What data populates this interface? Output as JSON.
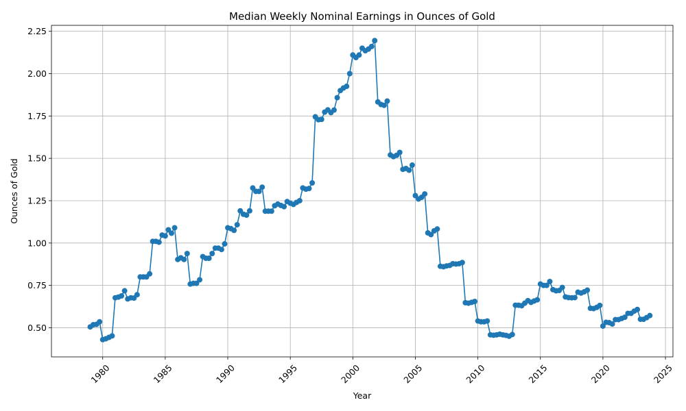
{
  "chart_data": {
    "type": "line",
    "title": "Median Weekly Nominal Earnings in Ounces of Gold",
    "xlabel": "Year",
    "ylabel": "Ounces of Gold",
    "xlim": [
      1975.9,
      2025.6
    ],
    "ylim": [
      0.328,
      2.285
    ],
    "x_ticks": [
      1980,
      1985,
      1990,
      1995,
      2000,
      2005,
      2010,
      2015,
      2020,
      2025
    ],
    "y_ticks": [
      0.5,
      0.75,
      1.0,
      1.25,
      1.5,
      1.75,
      2.0,
      2.25
    ],
    "y_tick_labels": [
      "0.50",
      "0.75",
      "1.00",
      "1.25",
      "1.50",
      "1.75",
      "2.00",
      "2.25"
    ],
    "grid": true,
    "marker": "circle",
    "series": [
      {
        "color": "#1f77b4",
        "x": [
          1979.0,
          1979.25,
          1979.5,
          1979.75,
          1980.0,
          1980.25,
          1980.5,
          1980.75,
          1981.0,
          1981.25,
          1981.5,
          1981.75,
          1982.0,
          1982.25,
          1982.5,
          1982.75,
          1983.0,
          1983.25,
          1983.5,
          1983.75,
          1984.0,
          1984.25,
          1984.5,
          1984.75,
          1985.0,
          1985.25,
          1985.5,
          1985.75,
          1986.0,
          1986.25,
          1986.5,
          1986.75,
          1987.0,
          1987.25,
          1987.5,
          1987.75,
          1988.0,
          1988.25,
          1988.5,
          1988.75,
          1989.0,
          1989.25,
          1989.5,
          1989.75,
          1990.0,
          1990.25,
          1990.5,
          1990.75,
          1991.0,
          1991.25,
          1991.5,
          1991.75,
          1992.0,
          1992.25,
          1992.5,
          1992.75,
          1993.0,
          1993.25,
          1993.5,
          1993.75,
          1994.0,
          1994.25,
          1994.5,
          1994.75,
          1995.0,
          1995.25,
          1995.5,
          1995.75,
          1996.0,
          1996.25,
          1996.5,
          1996.75,
          1997.0,
          1997.25,
          1997.5,
          1997.75,
          1998.0,
          1998.25,
          1998.5,
          1998.75,
          1999.0,
          1999.25,
          1999.5,
          1999.75,
          2000.0,
          2000.25,
          2000.5,
          2000.75,
          2001.0,
          2001.25,
          2001.5,
          2001.75,
          2002.0,
          2002.25,
          2002.5,
          2002.75,
          2003.0,
          2003.25,
          2003.5,
          2003.75,
          2004.0,
          2004.25,
          2004.5,
          2004.75,
          2005.0,
          2005.25,
          2005.5,
          2005.75,
          2006.0,
          2006.25,
          2006.5,
          2006.75,
          2007.0,
          2007.25,
          2007.5,
          2007.75,
          2008.0,
          2008.25,
          2008.5,
          2008.75,
          2009.0,
          2009.25,
          2009.5,
          2009.75,
          2010.0,
          2010.25,
          2010.5,
          2010.75,
          2011.0,
          2011.25,
          2011.5,
          2011.75,
          2012.0,
          2012.25,
          2012.5,
          2012.75,
          2013.0,
          2013.25,
          2013.5,
          2013.75,
          2014.0,
          2014.25,
          2014.5,
          2014.75,
          2015.0,
          2015.25,
          2015.5,
          2015.75,
          2016.0,
          2016.25,
          2016.5,
          2016.75,
          2017.0,
          2017.25,
          2017.5,
          2017.75,
          2018.0,
          2018.25,
          2018.5,
          2018.75,
          2019.0,
          2019.25,
          2019.5,
          2019.75,
          2020.0,
          2020.25,
          2020.5,
          2020.75,
          2021.0,
          2021.25,
          2021.5,
          2021.75,
          2022.0,
          2022.25,
          2022.5,
          2022.75,
          2023.0,
          2023.25,
          2023.5,
          2023.75
        ],
        "y": [
          0.505,
          0.518,
          0.52,
          0.535,
          0.43,
          0.435,
          0.443,
          0.452,
          0.677,
          0.681,
          0.688,
          0.718,
          0.67,
          0.677,
          0.675,
          0.695,
          0.8,
          0.8,
          0.8,
          0.818,
          1.01,
          1.01,
          1.005,
          1.047,
          1.042,
          1.078,
          1.058,
          1.09,
          0.903,
          0.913,
          0.903,
          0.938,
          0.758,
          0.762,
          0.762,
          0.783,
          0.92,
          0.91,
          0.91,
          0.938,
          0.97,
          0.97,
          0.962,
          0.995,
          1.09,
          1.085,
          1.075,
          1.108,
          1.19,
          1.17,
          1.165,
          1.19,
          1.325,
          1.305,
          1.305,
          1.33,
          1.188,
          1.188,
          1.188,
          1.22,
          1.23,
          1.222,
          1.215,
          1.245,
          1.235,
          1.228,
          1.24,
          1.25,
          1.325,
          1.318,
          1.322,
          1.355,
          1.745,
          1.728,
          1.73,
          1.773,
          1.786,
          1.77,
          1.785,
          1.858,
          1.9,
          1.915,
          1.925,
          2.0,
          2.11,
          2.095,
          2.11,
          2.15,
          2.135,
          2.145,
          2.16,
          2.195,
          1.833,
          1.818,
          1.813,
          1.838,
          1.52,
          1.51,
          1.518,
          1.535,
          1.435,
          1.44,
          1.43,
          1.46,
          1.28,
          1.26,
          1.27,
          1.29,
          1.06,
          1.05,
          1.072,
          1.083,
          0.863,
          0.86,
          0.865,
          0.868,
          0.878,
          0.876,
          0.878,
          0.885,
          0.648,
          0.645,
          0.65,
          0.655,
          0.54,
          0.535,
          0.535,
          0.54,
          0.458,
          0.456,
          0.458,
          0.462,
          0.458,
          0.455,
          0.45,
          0.46,
          0.633,
          0.633,
          0.63,
          0.645,
          0.66,
          0.65,
          0.658,
          0.665,
          0.758,
          0.75,
          0.75,
          0.773,
          0.725,
          0.718,
          0.72,
          0.738,
          0.682,
          0.678,
          0.677,
          0.678,
          0.71,
          0.705,
          0.712,
          0.722,
          0.615,
          0.613,
          0.62,
          0.632,
          0.51,
          0.532,
          0.53,
          0.522,
          0.548,
          0.548,
          0.555,
          0.562,
          0.585,
          0.585,
          0.598,
          0.608,
          0.55,
          0.55,
          0.56,
          0.572
        ]
      }
    ]
  }
}
